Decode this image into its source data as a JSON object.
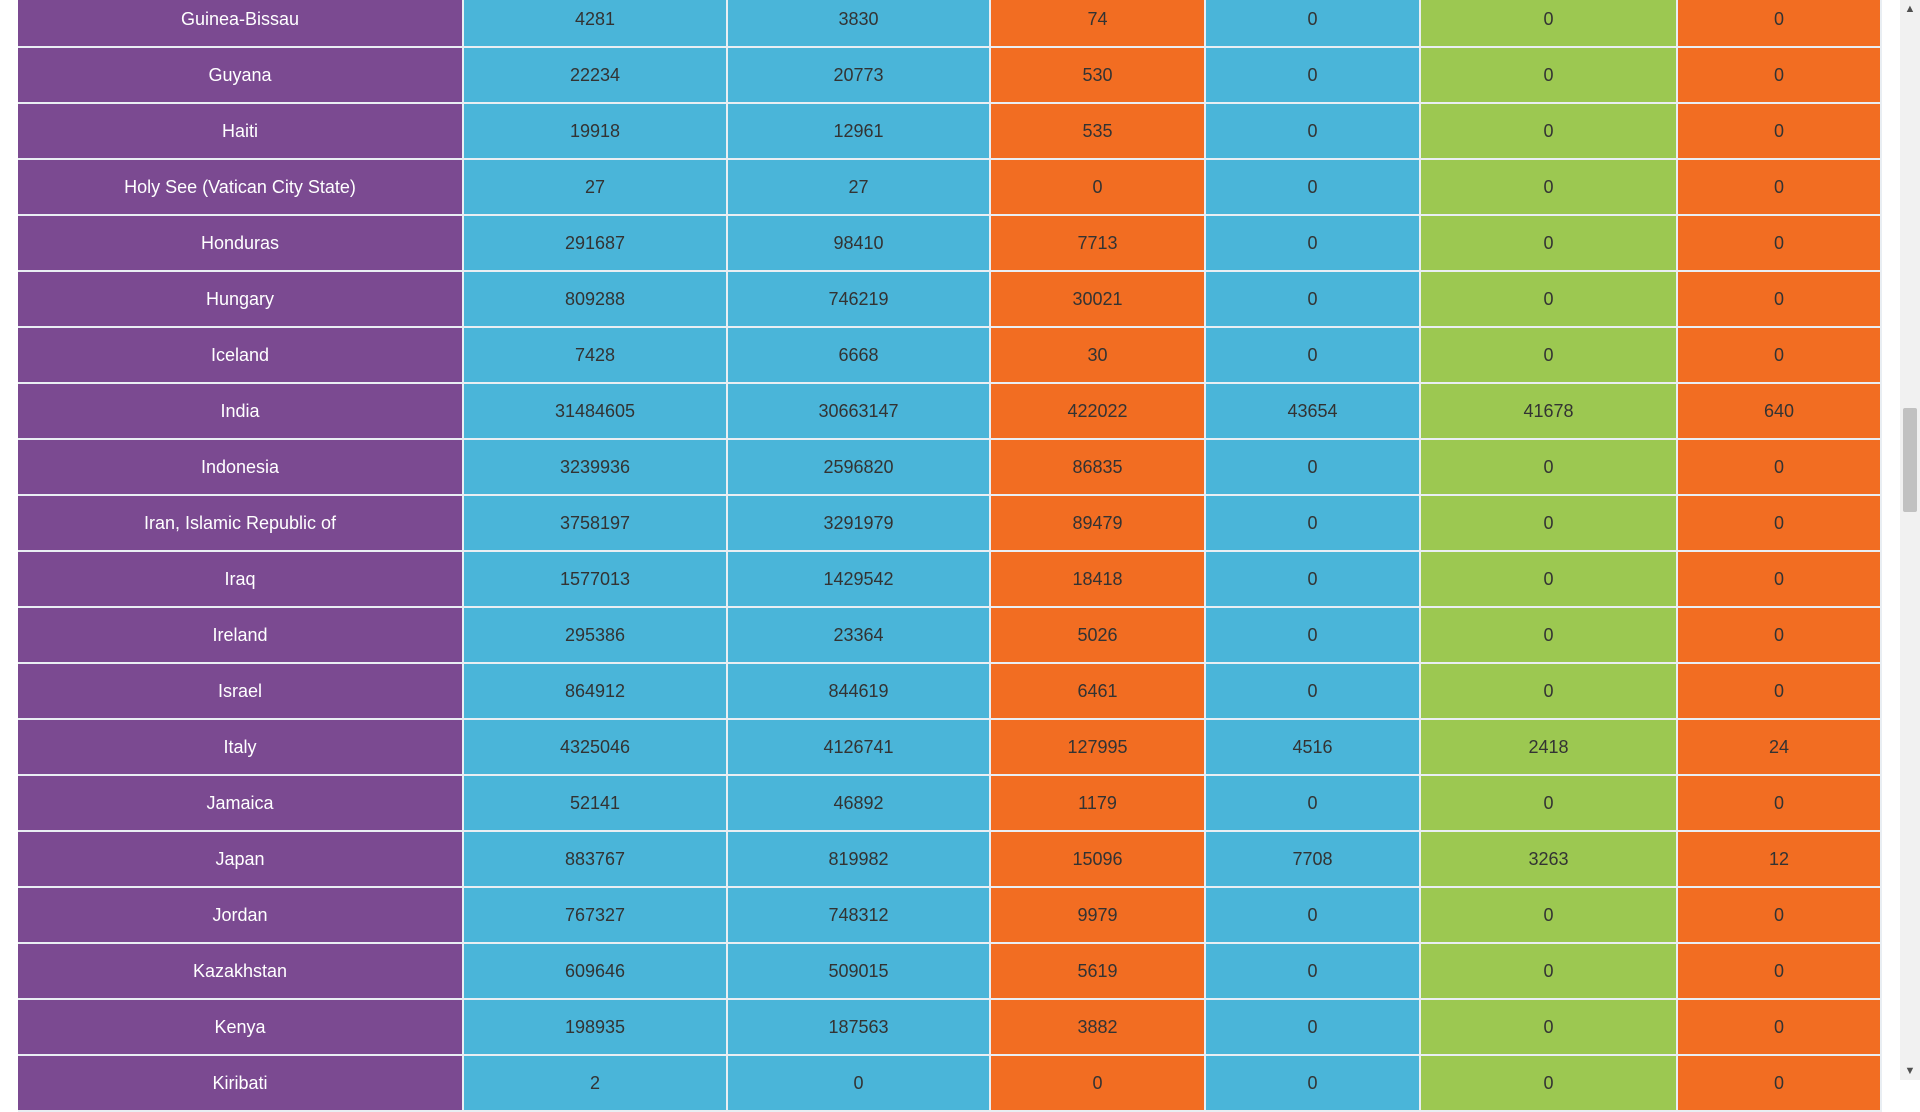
{
  "colors": {
    "country": "#7b4a91",
    "col1": "#4ab5d9",
    "col2": "#4ab5d9",
    "col3": "#f26d22",
    "col4": "#4ab5d9",
    "col5": "#9cc851",
    "col6": "#f26d22"
  },
  "rows": [
    {
      "country": "Guinea-Bissau",
      "c1": "4281",
      "c2": "3830",
      "c3": "74",
      "c4": "0",
      "c5": "0",
      "c6": "0"
    },
    {
      "country": "Guyana",
      "c1": "22234",
      "c2": "20773",
      "c3": "530",
      "c4": "0",
      "c5": "0",
      "c6": "0"
    },
    {
      "country": "Haiti",
      "c1": "19918",
      "c2": "12961",
      "c3": "535",
      "c4": "0",
      "c5": "0",
      "c6": "0"
    },
    {
      "country": "Holy See (Vatican City State)",
      "c1": "27",
      "c2": "27",
      "c3": "0",
      "c4": "0",
      "c5": "0",
      "c6": "0"
    },
    {
      "country": "Honduras",
      "c1": "291687",
      "c2": "98410",
      "c3": "7713",
      "c4": "0",
      "c5": "0",
      "c6": "0"
    },
    {
      "country": "Hungary",
      "c1": "809288",
      "c2": "746219",
      "c3": "30021",
      "c4": "0",
      "c5": "0",
      "c6": "0"
    },
    {
      "country": "Iceland",
      "c1": "7428",
      "c2": "6668",
      "c3": "30",
      "c4": "0",
      "c5": "0",
      "c6": "0"
    },
    {
      "country": "India",
      "c1": "31484605",
      "c2": "30663147",
      "c3": "422022",
      "c4": "43654",
      "c5": "41678",
      "c6": "640"
    },
    {
      "country": "Indonesia",
      "c1": "3239936",
      "c2": "2596820",
      "c3": "86835",
      "c4": "0",
      "c5": "0",
      "c6": "0"
    },
    {
      "country": "Iran, Islamic Republic of",
      "c1": "3758197",
      "c2": "3291979",
      "c3": "89479",
      "c4": "0",
      "c5": "0",
      "c6": "0"
    },
    {
      "country": "Iraq",
      "c1": "1577013",
      "c2": "1429542",
      "c3": "18418",
      "c4": "0",
      "c5": "0",
      "c6": "0"
    },
    {
      "country": "Ireland",
      "c1": "295386",
      "c2": "23364",
      "c3": "5026",
      "c4": "0",
      "c5": "0",
      "c6": "0"
    },
    {
      "country": "Israel",
      "c1": "864912",
      "c2": "844619",
      "c3": "6461",
      "c4": "0",
      "c5": "0",
      "c6": "0"
    },
    {
      "country": "Italy",
      "c1": "4325046",
      "c2": "4126741",
      "c3": "127995",
      "c4": "4516",
      "c5": "2418",
      "c6": "24"
    },
    {
      "country": "Jamaica",
      "c1": "52141",
      "c2": "46892",
      "c3": "1179",
      "c4": "0",
      "c5": "0",
      "c6": "0"
    },
    {
      "country": "Japan",
      "c1": "883767",
      "c2": "819982",
      "c3": "15096",
      "c4": "7708",
      "c5": "3263",
      "c6": "12"
    },
    {
      "country": "Jordan",
      "c1": "767327",
      "c2": "748312",
      "c3": "9979",
      "c4": "0",
      "c5": "0",
      "c6": "0"
    },
    {
      "country": "Kazakhstan",
      "c1": "609646",
      "c2": "509015",
      "c3": "5619",
      "c4": "0",
      "c5": "0",
      "c6": "0"
    },
    {
      "country": "Kenya",
      "c1": "198935",
      "c2": "187563",
      "c3": "3882",
      "c4": "0",
      "c5": "0",
      "c6": "0"
    },
    {
      "country": "Kiribati",
      "c1": "2",
      "c2": "0",
      "c3": "0",
      "c4": "0",
      "c5": "0",
      "c6": "0"
    }
  ],
  "scrollbar": {
    "up_icon": "scroll-up-arrow-icon",
    "down_icon": "scroll-down-arrow-icon",
    "up_glyph": "▲",
    "down_glyph": "▼"
  }
}
